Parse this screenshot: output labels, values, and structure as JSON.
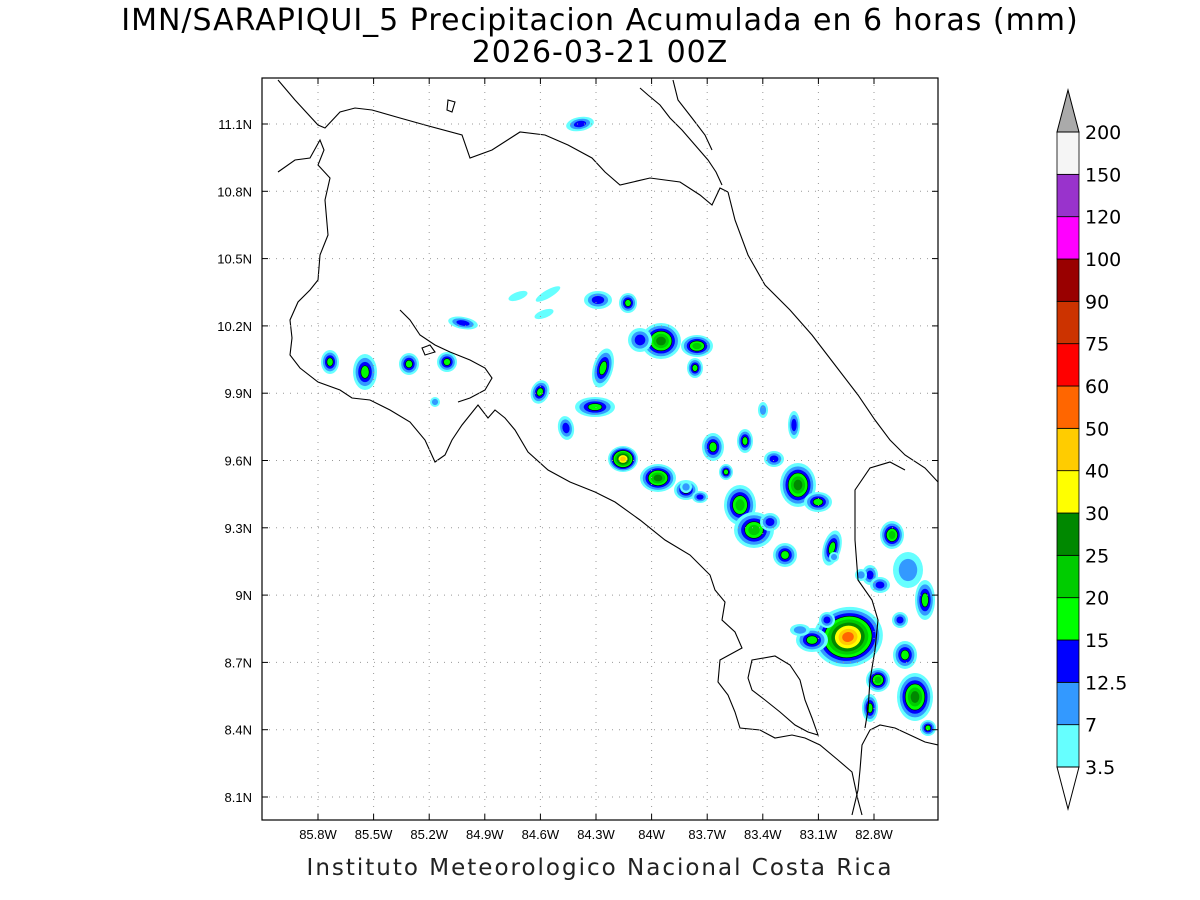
{
  "title": {
    "line1": "IMN/SARAPIQUI_5 Precipitacion Acumulada en 6 horas (mm)",
    "line2": "2026-03-21 00Z"
  },
  "footer": "Instituto Meteorologico Nacional Costa Rica",
  "map": {
    "lon_range": [
      -86.0,
      -82.6
    ],
    "lat_range": [
      8.0,
      11.3
    ],
    "lon_ticks": [
      "85.8W",
      "85.5W",
      "85.2W",
      "84.9W",
      "84.6W",
      "84.3W",
      "84W",
      "83.7W",
      "83.4W",
      "83.1W",
      "82.8W"
    ],
    "lat_ticks": [
      "11.1N",
      "10.8N",
      "10.5N",
      "10.2N",
      "9.9N",
      "9.6N",
      "9.3N",
      "9N",
      "8.7N",
      "8.4N",
      "8.1N"
    ],
    "grid": "dotted"
  },
  "colorbar": {
    "labels": [
      "3.5",
      "7",
      "12.5",
      "15",
      "20",
      "25",
      "30",
      "40",
      "50",
      "60",
      "75",
      "90",
      "100",
      "120",
      "150",
      "200"
    ],
    "colors": [
      "#66ffff",
      "#3399ff",
      "#0000ff",
      "#00ff00",
      "#00cc00",
      "#008800",
      "#ffff00",
      "#ffcc00",
      "#ff6600",
      "#ff0000",
      "#cc3300",
      "#990000",
      "#ff00ff",
      "#9933cc",
      "#f5f5f5"
    ],
    "below_color": "#ffffff",
    "above_color": "#aaaaaa"
  },
  "legend_colors": {
    "c1": "#66ffff",
    "c2": "#3399ff",
    "c3": "#0000ff",
    "c4": "#00ff00",
    "c5": "#00cc00",
    "c6": "#008800",
    "c7": "#ffff00",
    "c8": "#ffcc00",
    "c9": "#ff6600",
    "c10": "#ff0000"
  }
}
